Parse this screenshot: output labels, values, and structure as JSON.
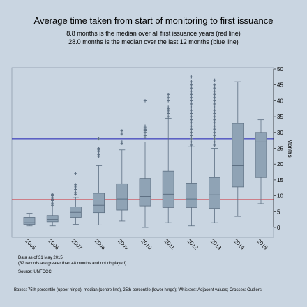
{
  "title": "Average time taken from start of monitoring to first issuance",
  "subtitle_lines": [
    "8.8 months is the median over all first issuance years (red line)",
    "28.0 months is the median over the last 12 months (blue line)"
  ],
  "notes": [
    "Data as of 31 May 2015",
    "(32 records are greater than 48 months and not displayed)",
    "Source: UNFCCC",
    "Boxes: 75th percentile (upper hinge), median (centre line), 25th percentile (lower hinge); Whiskers: Adjacent values; Crosses: Outliers"
  ],
  "colors": {
    "background": "#c9d5e1",
    "box_fill": "#8fa3b5",
    "box_stroke": "#5e7083",
    "outlier": "#5e7083",
    "red_line": "#d1262f",
    "blue_line": "#1c1cb4"
  },
  "chart_data": {
    "type": "box",
    "title": "Average time taken from start of monitoring to first issuance",
    "ylabel": "Months",
    "xlabel": "",
    "ylim": [
      0,
      50
    ],
    "yticks": [
      0,
      5,
      10,
      15,
      20,
      25,
      30,
      35,
      40,
      45,
      50
    ],
    "y_axis_side": "right",
    "grid": false,
    "categories": [
      "2005",
      "2006",
      "2007",
      "2008",
      "2009",
      "2010",
      "2011",
      "2012",
      "2013",
      "2014",
      "2015"
    ],
    "boxes": [
      {
        "category": "2005",
        "whisker_low": 0.5,
        "q1": 1.0,
        "median": 1.5,
        "q3": 3.2,
        "whisker_high": 4.5,
        "outliers": []
      },
      {
        "category": "2006",
        "whisker_low": 0.5,
        "q1": 1.8,
        "median": 2.5,
        "q3": 3.8,
        "whisker_high": 6.5,
        "outliers": [
          7,
          7.5,
          8,
          8.5,
          9,
          9.5,
          10,
          10.5
        ]
      },
      {
        "category": "2007",
        "whisker_low": 1.0,
        "q1": 3.2,
        "median": 4.8,
        "q3": 6.5,
        "whisker_high": 9.5,
        "outliers": [
          10.5,
          11,
          12,
          12.5,
          13,
          13.5,
          17
        ]
      },
      {
        "category": "2008",
        "whisker_low": 0.8,
        "q1": 4.7,
        "median": 7.0,
        "q3": 10.8,
        "whisker_high": 19.5,
        "outliers": [
          22.5,
          23,
          24,
          24.5,
          25,
          28
        ]
      },
      {
        "category": "2009",
        "whisker_low": 2.0,
        "q1": 5.5,
        "median": 9.0,
        "q3": 13.8,
        "whisker_high": 24.5,
        "outliers": [
          26.5,
          27,
          29.5,
          30.5
        ]
      },
      {
        "category": "2010",
        "whisker_low": 0.0,
        "q1": 6.8,
        "median": 9.8,
        "q3": 15.5,
        "whisker_high": 27.0,
        "outliers": [
          28.5,
          29,
          30,
          30.5,
          31,
          31.5,
          32,
          40
        ]
      },
      {
        "category": "2011",
        "whisker_low": 1.5,
        "q1": 6.3,
        "median": 10.5,
        "q3": 17.8,
        "whisker_high": 34.5,
        "outliers": [
          35,
          36,
          36.5,
          37,
          37.5,
          38,
          40,
          41,
          42
        ]
      },
      {
        "category": "2012",
        "whisker_low": 0.5,
        "q1": 6.3,
        "median": 9.0,
        "q3": 14.0,
        "whisker_high": 25.5,
        "outliers": [
          26,
          27,
          28,
          29,
          30,
          31,
          32,
          33,
          34,
          35,
          36,
          37,
          38,
          39,
          40,
          41,
          42,
          43,
          44,
          45,
          46,
          47.5
        ]
      },
      {
        "category": "2013",
        "whisker_low": 1.5,
        "q1": 6.0,
        "median": 10.3,
        "q3": 15.8,
        "whisker_high": 25.0,
        "outliers": [
          26,
          27,
          28,
          29,
          30,
          31,
          32,
          33,
          34,
          35,
          36,
          37,
          38,
          39,
          40,
          41,
          42,
          43,
          44,
          45,
          46.5
        ]
      },
      {
        "category": "2014",
        "whisker_low": 3.5,
        "q1": 12.8,
        "median": 19.5,
        "q3": 32.8,
        "whisker_high": 46.0,
        "outliers": []
      },
      {
        "category": "2015",
        "whisker_low": 7.5,
        "q1": 15.8,
        "median": 27.0,
        "q3": 30.0,
        "whisker_high": 34.0,
        "outliers": []
      }
    ],
    "reference_lines": [
      {
        "value": 8.8,
        "color": "red",
        "meaning": "median over all first issuance years"
      },
      {
        "value": 28.0,
        "color": "blue",
        "meaning": "median over the last 12 months"
      }
    ]
  }
}
